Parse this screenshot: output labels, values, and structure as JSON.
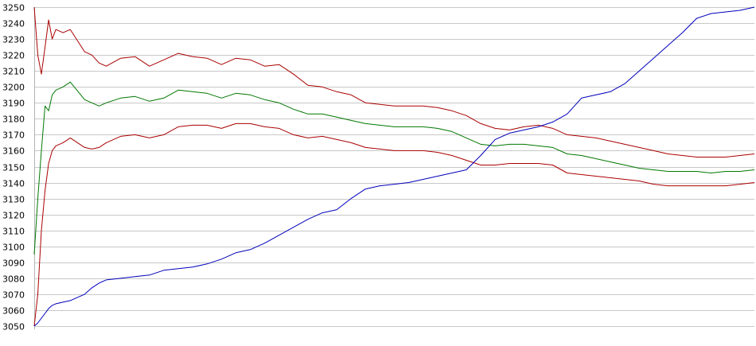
{
  "chart_data": {
    "type": "line",
    "title": "",
    "xlabel": "",
    "ylabel": "",
    "ylim": [
      3050,
      3250
    ],
    "yticks": [
      3050,
      3060,
      3070,
      3080,
      3090,
      3100,
      3110,
      3120,
      3130,
      3140,
      3150,
      3160,
      3170,
      3180,
      3190,
      3200,
      3210,
      3220,
      3230,
      3240,
      3250
    ],
    "yticks_labels": [
      "3050",
      "3060",
      "3070",
      "3080",
      "3090",
      "3100",
      "3110",
      "3120",
      "3130",
      "3140",
      "3150",
      "3160",
      "3170",
      "3180",
      "3190",
      "3200",
      "3210",
      "3220",
      "3230",
      "3240",
      "3250"
    ],
    "xlim": [
      0,
      100
    ],
    "grid": "horizontal",
    "legend": "none",
    "series": [
      {
        "color": "#aa0000",
        "x": [
          0,
          0.5,
          1,
          1.5,
          2,
          2.5,
          3,
          4,
          5,
          7,
          8,
          9,
          10,
          12,
          14,
          16,
          18,
          20,
          22,
          24,
          26,
          28,
          30,
          32,
          34,
          36,
          38,
          40,
          42,
          44,
          46,
          48,
          50,
          52,
          54,
          56,
          58,
          60,
          62,
          64,
          66,
          68,
          70,
          72,
          74,
          76,
          78,
          80,
          82,
          84,
          86,
          88,
          90,
          92,
          94,
          96,
          98,
          100
        ],
        "values": [
          3250,
          3220,
          3208,
          3225,
          3242,
          3230,
          3236,
          3234,
          3236,
          3222,
          3220,
          3215,
          3213,
          3218,
          3219,
          3213,
          3217,
          3221,
          3219,
          3218,
          3214,
          3218,
          3217,
          3213,
          3214,
          3208,
          3201,
          3200,
          3197,
          3195,
          3190,
          3189,
          3188,
          3188,
          3188,
          3187,
          3185,
          3182,
          3177,
          3174,
          3173,
          3175,
          3176,
          3174,
          3170,
          3169,
          3168,
          3166,
          3164,
          3162,
          3160,
          3158,
          3157,
          3156,
          3156,
          3156,
          3157,
          3158
        ]
      },
      {
        "color": "#007700",
        "x": [
          0,
          0.5,
          1,
          1.5,
          2,
          2.5,
          3,
          4,
          5,
          7,
          8,
          9,
          10,
          12,
          14,
          16,
          18,
          20,
          22,
          24,
          26,
          28,
          30,
          32,
          34,
          36,
          38,
          40,
          42,
          44,
          46,
          48,
          50,
          52,
          54,
          56,
          58,
          60,
          62,
          64,
          66,
          68,
          70,
          72,
          74,
          76,
          78,
          80,
          82,
          84,
          86,
          88,
          90,
          92,
          94,
          96,
          98,
          100
        ],
        "values": [
          3095,
          3130,
          3160,
          3188,
          3185,
          3195,
          3198,
          3200,
          3203,
          3192,
          3190,
          3188,
          3190,
          3193,
          3194,
          3191,
          3193,
          3198,
          3197,
          3196,
          3193,
          3196,
          3195,
          3192,
          3190,
          3186,
          3183,
          3183,
          3181,
          3179,
          3177,
          3176,
          3175,
          3175,
          3175,
          3174,
          3172,
          3168,
          3164,
          3163,
          3164,
          3164,
          3163,
          3162,
          3158,
          3157,
          3155,
          3153,
          3151,
          3149,
          3148,
          3147,
          3147,
          3147,
          3146,
          3147,
          3147,
          3148
        ]
      },
      {
        "color": "#aa0000",
        "x": [
          0,
          0.5,
          1,
          1.5,
          2,
          2.5,
          3,
          4,
          5,
          7,
          8,
          9,
          10,
          12,
          14,
          16,
          18,
          20,
          22,
          24,
          26,
          28,
          30,
          32,
          34,
          36,
          38,
          40,
          42,
          44,
          46,
          48,
          50,
          52,
          54,
          56,
          58,
          60,
          62,
          64,
          66,
          68,
          70,
          72,
          74,
          76,
          78,
          80,
          82,
          84,
          86,
          88,
          90,
          92,
          94,
          96,
          98,
          100
        ],
        "values": [
          3050,
          3070,
          3110,
          3135,
          3152,
          3160,
          3163,
          3165,
          3168,
          3162,
          3161,
          3162,
          3165,
          3169,
          3170,
          3168,
          3170,
          3175,
          3176,
          3176,
          3174,
          3177,
          3177,
          3175,
          3174,
          3170,
          3168,
          3169,
          3167,
          3165,
          3162,
          3161,
          3160,
          3160,
          3160,
          3159,
          3157,
          3154,
          3151,
          3151,
          3152,
          3152,
          3152,
          3151,
          3146,
          3145,
          3144,
          3143,
          3142,
          3141,
          3139,
          3138,
          3138,
          3138,
          3138,
          3138,
          3139,
          3140
        ]
      },
      {
        "color": "#0000bb",
        "x": [
          0,
          0.5,
          1,
          1.5,
          2,
          2.5,
          3,
          4,
          5,
          7,
          8,
          9,
          10,
          12,
          14,
          16,
          18,
          20,
          22,
          24,
          26,
          28,
          30,
          32,
          34,
          36,
          38,
          40,
          42,
          44,
          46,
          48,
          50,
          52,
          54,
          56,
          58,
          60,
          62,
          64,
          66,
          68,
          70,
          72,
          74,
          76,
          78,
          80,
          82,
          84,
          86,
          88,
          90,
          92,
          94,
          96,
          98,
          100
        ],
        "values": [
          3050,
          3052,
          3055,
          3058,
          3061,
          3063,
          3064,
          3065,
          3066,
          3070,
          3074,
          3077,
          3079,
          3080,
          3081,
          3082,
          3085,
          3086,
          3087,
          3089,
          3092,
          3096,
          3098,
          3102,
          3107,
          3112,
          3117,
          3121,
          3123,
          3130,
          3136,
          3138,
          3139,
          3140,
          3142,
          3144,
          3146,
          3148,
          3157,
          3167,
          3171,
          3173,
          3175,
          3178,
          3183,
          3193,
          3195,
          3197,
          3202,
          3210,
          3218,
          3226,
          3234,
          3243,
          3246,
          3247,
          3248,
          3250
        ]
      }
    ]
  }
}
